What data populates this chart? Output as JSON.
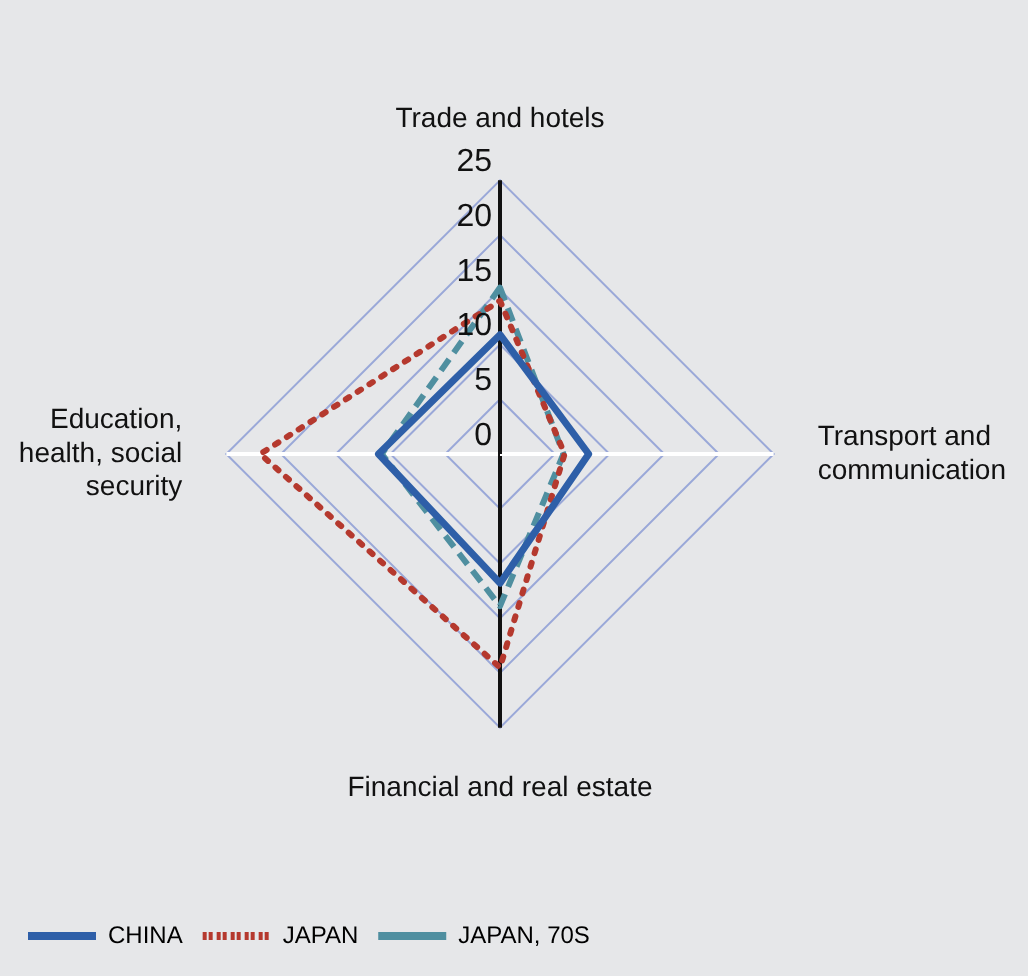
{
  "chart_data": {
    "type": "radar",
    "categories": [
      "Trade and hotels",
      "Transport and communication",
      "Financial and real estate",
      "Education, health, social security"
    ],
    "ylim": [
      0,
      25
    ],
    "yticks": [
      0,
      5,
      10,
      15,
      20,
      25
    ],
    "grid": true,
    "legend": "bottom left",
    "marker": "none",
    "series": [
      {
        "name": "CHINA",
        "color": "#2e5fa8",
        "line_style": "solid",
        "values": [
          10.9,
          8.1,
          11.8,
          11.1
        ]
      },
      {
        "name": "JAPAN",
        "color": "#b5392e",
        "line_style": "dotted",
        "values": [
          14.0,
          5.9,
          19.5,
          21.9
        ]
      },
      {
        "name": "JAPAN, 70S",
        "color": "#4f8fa0",
        "line_style": "dashed",
        "values": [
          15.2,
          5.8,
          13.9,
          10.8
        ]
      }
    ]
  }
}
